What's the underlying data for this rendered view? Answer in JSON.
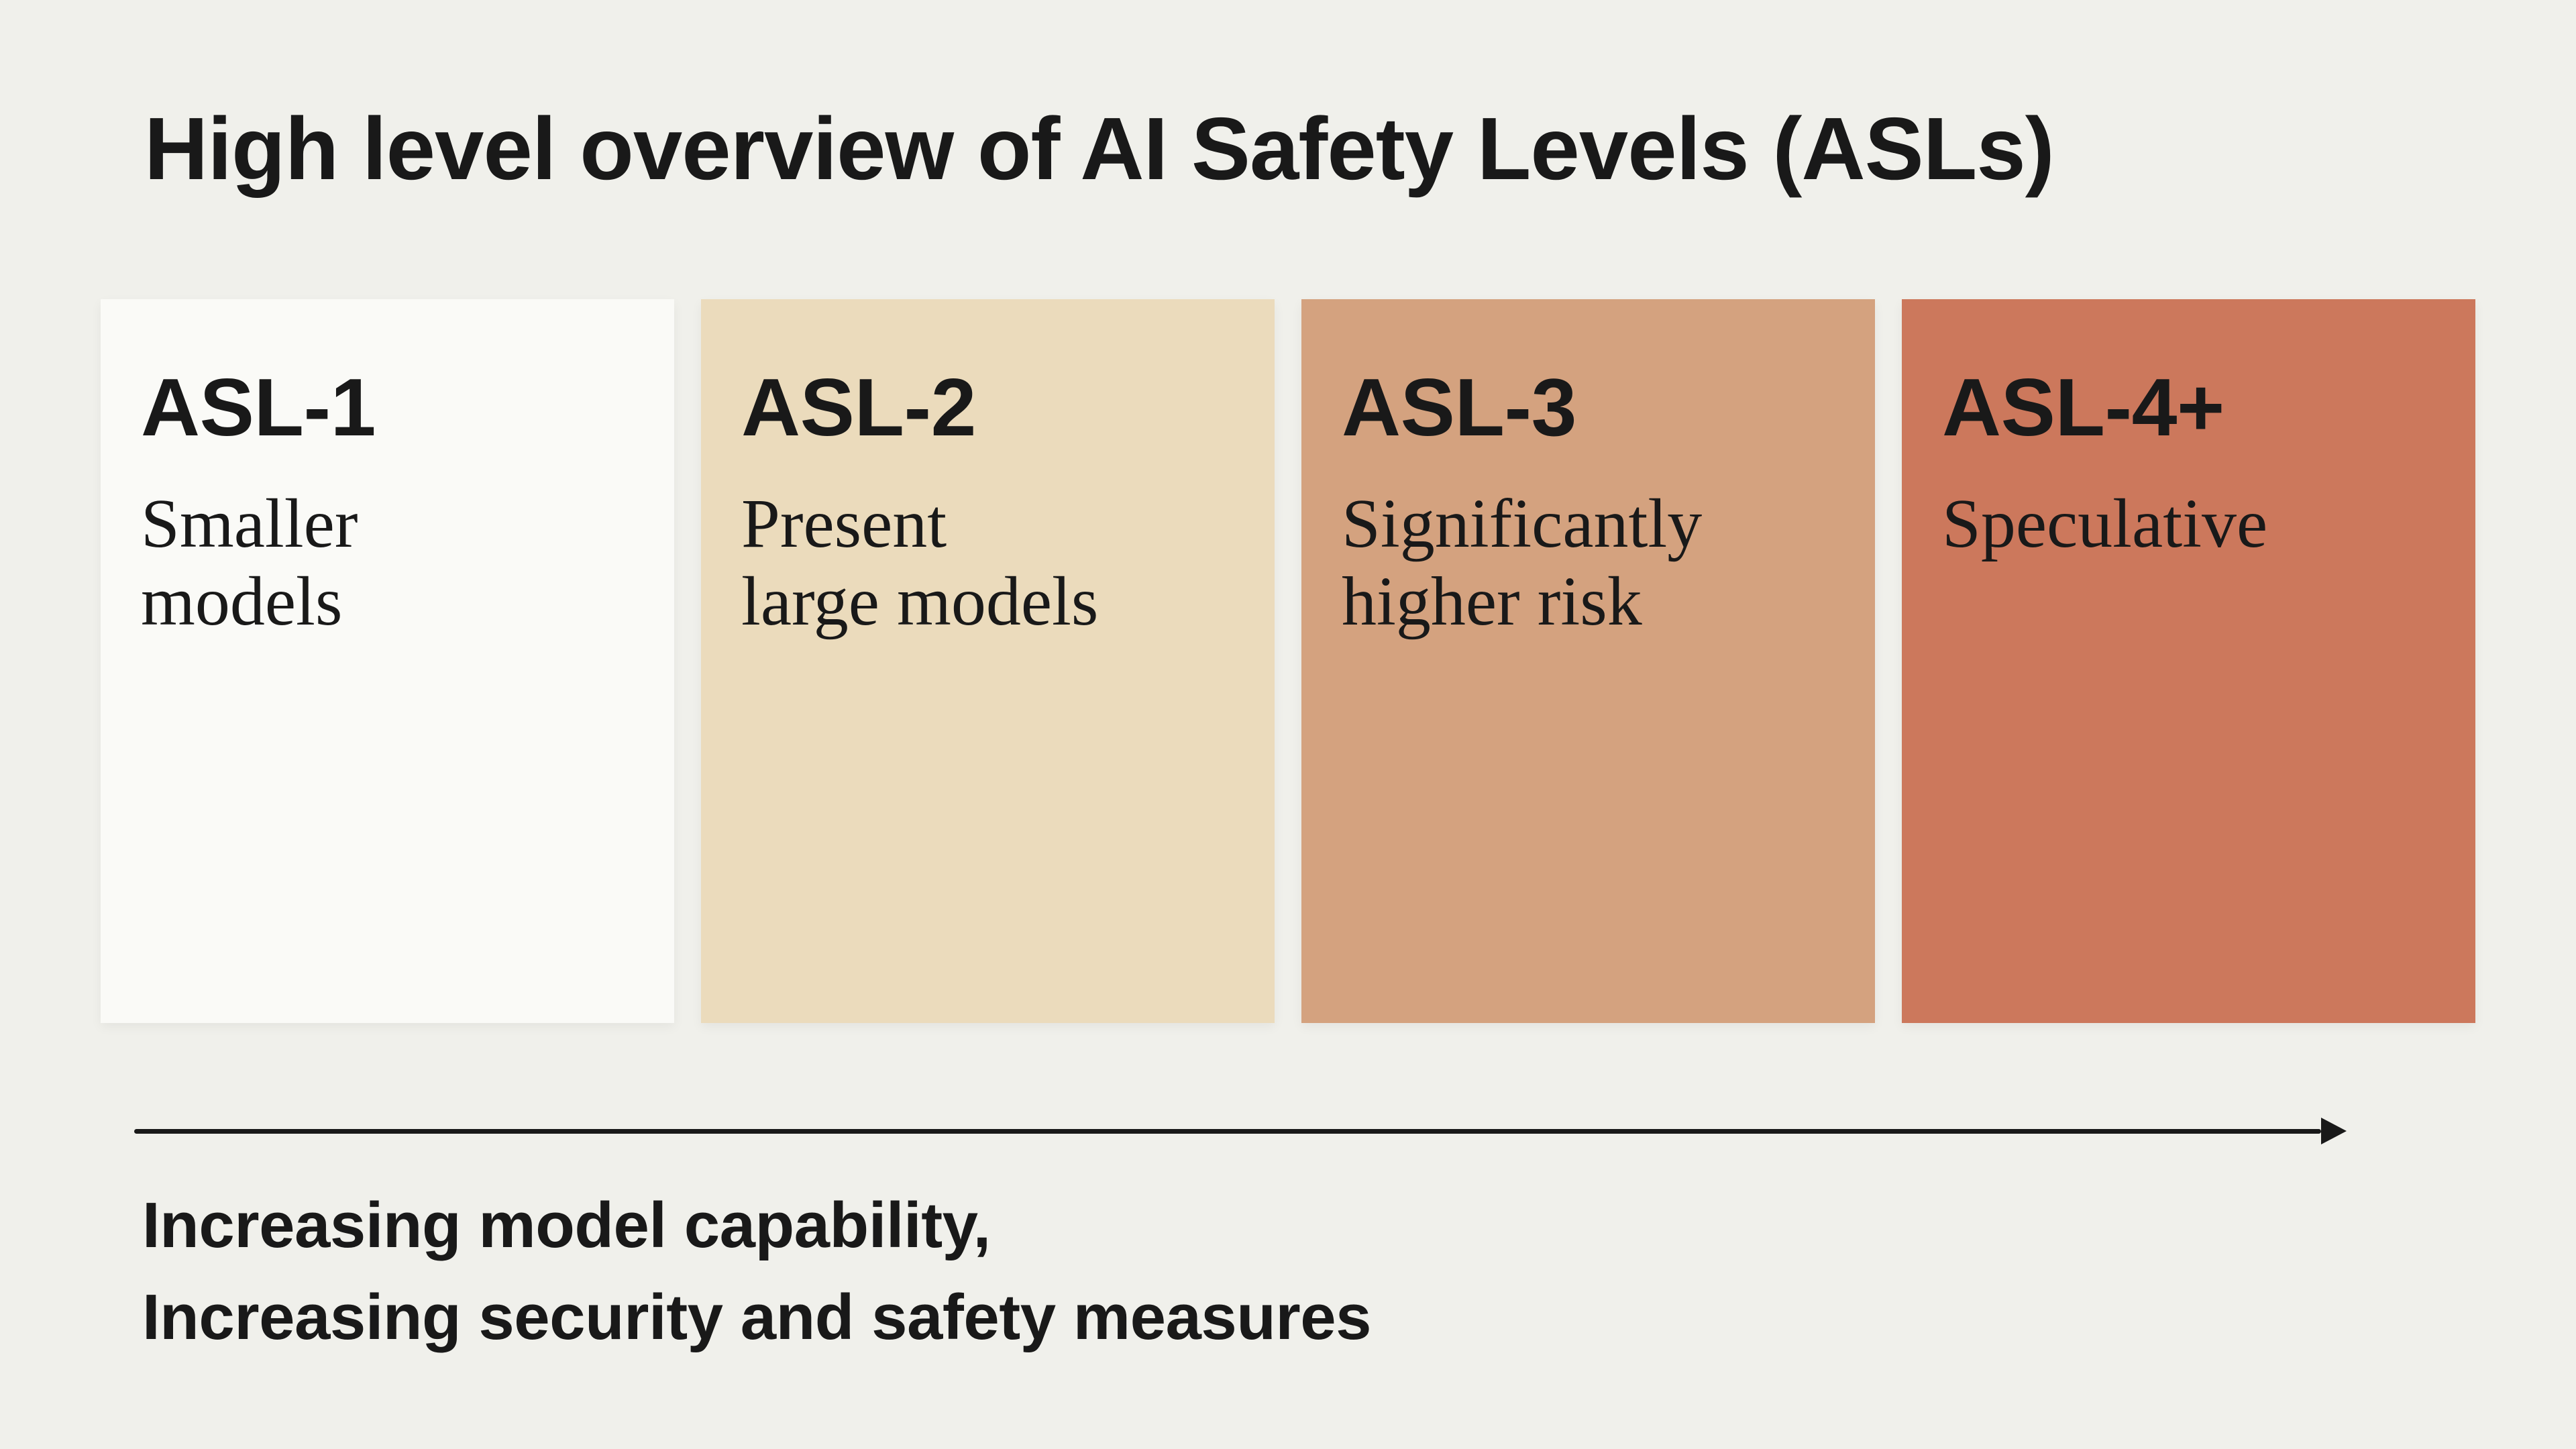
{
  "page": {
    "title": "High level overview of AI Safety Levels (ASLs)",
    "background_color": "#F0F0EB",
    "text_color": "#191919"
  },
  "cards": [
    {
      "label": "ASL-1",
      "desc_line1": "Smaller",
      "desc_line2": "models",
      "color": "#FAFAF7"
    },
    {
      "label": "ASL-2",
      "desc_line1": "Present",
      "desc_line2": "large models",
      "color": "#EBDBBC"
    },
    {
      "label": "ASL-3",
      "desc_line1": "Significantly",
      "desc_line2": "higher risk",
      "color": "#D4A27F"
    },
    {
      "label": "ASL-4+",
      "desc_line1": "Speculative",
      "desc_line2": "",
      "color": "#CC785C"
    }
  ],
  "axis": {
    "caption_line1": "Increasing model capability,",
    "caption_line2": "Increasing security and safety measures",
    "arrow_color": "#191919",
    "direction": "right"
  }
}
